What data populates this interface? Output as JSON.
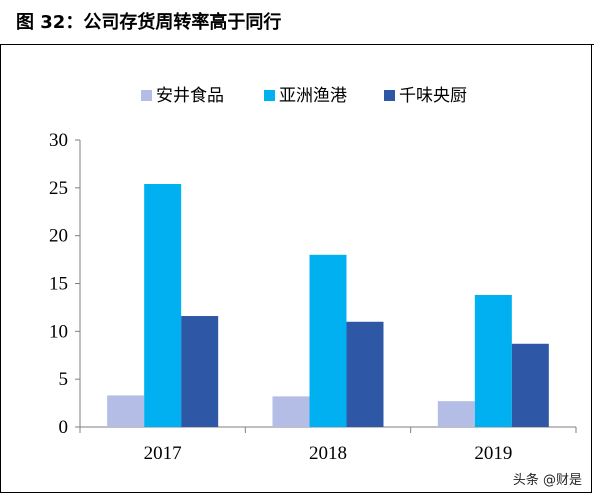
{
  "figure": {
    "title": "图 32：公司存货周转率高于同行",
    "watermark": "头条 @财是"
  },
  "chart_data": {
    "type": "bar",
    "title": "",
    "xlabel": "",
    "ylabel": "",
    "categories": [
      "2017",
      "2018",
      "2019"
    ],
    "ylim": [
      0,
      30
    ],
    "yticks": [
      0,
      5,
      10,
      15,
      20,
      25,
      30
    ],
    "grid": false,
    "legend_position": "top",
    "series": [
      {
        "name": "安井食品",
        "color": "#b4bde6",
        "values": [
          3.3,
          3.2,
          2.7
        ]
      },
      {
        "name": "亚洲渔港",
        "color": "#00b0f0",
        "values": [
          25.4,
          18.0,
          13.8
        ]
      },
      {
        "name": "千味央厨",
        "color": "#2e58a6",
        "values": [
          11.6,
          11.0,
          8.7
        ]
      }
    ]
  }
}
